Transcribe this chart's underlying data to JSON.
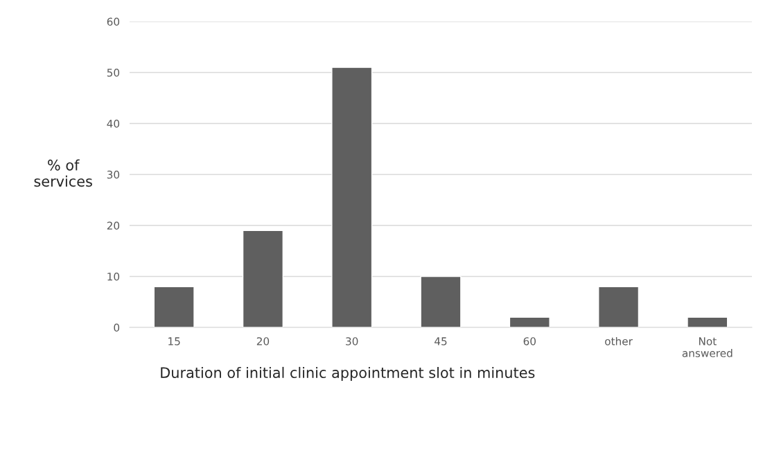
{
  "chart_data": {
    "type": "bar",
    "xlabel": "Duration of initial clinic appointment slot in minutes",
    "ylabel": "% of\nservices",
    "categories": [
      "15",
      "20",
      "30",
      "45",
      "60",
      "other",
      "Not\nanswered"
    ],
    "values": [
      8,
      19,
      51,
      10,
      2,
      8,
      2
    ],
    "color": "#5f5f5f",
    "ylim": [
      0,
      60
    ],
    "yticks": [
      0,
      10,
      20,
      30,
      40,
      50,
      60
    ],
    "grid": "y",
    "legend": false
  }
}
